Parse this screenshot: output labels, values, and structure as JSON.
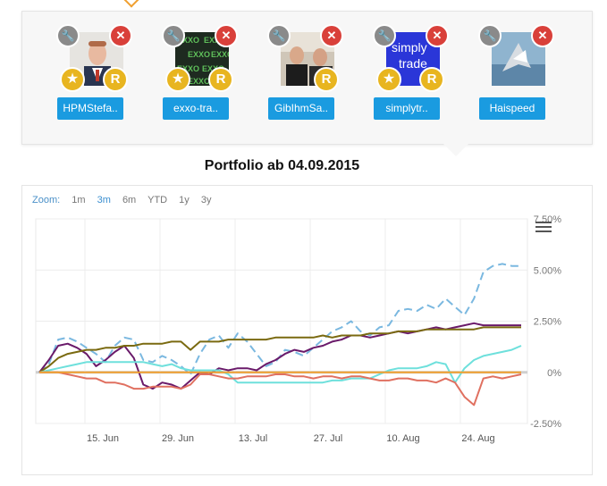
{
  "traders": [
    {
      "name": "HPMStefa..",
      "badges": [
        "star",
        "R"
      ]
    },
    {
      "name": "exxo-tra..",
      "badges": [
        "star",
        "R"
      ]
    },
    {
      "name": "GibIhmSa..",
      "badges": [
        "R"
      ]
    },
    {
      "name": "simplytr..",
      "badges": [
        "star",
        "R"
      ]
    },
    {
      "name": "Haispeed",
      "badges": []
    }
  ],
  "avatar_text": {
    "exxo": "EXXO",
    "simply_line1": "simply",
    "simply_line2": "trade"
  },
  "title": "Portfolio ab 04.09.2015",
  "zoom": {
    "label": "Zoom:",
    "options": [
      "1m",
      "3m",
      "6m",
      "YTD",
      "1y",
      "3y"
    ],
    "active": "3m"
  },
  "chart_data": {
    "type": "line",
    "x_ticks": [
      "15. Jun",
      "29. Jun",
      "13. Jul",
      "27. Jul",
      "10. Aug",
      "24. Aug"
    ],
    "y_ticks": [
      "7.50%",
      "5.00%",
      "2.50%",
      "0%",
      "-2.50%"
    ],
    "ylim": [
      -2.5,
      7.5
    ],
    "series": [
      {
        "color": "#7ab8e0",
        "dashed": true,
        "values": [
          0,
          0.4,
          1.6,
          1.7,
          1.5,
          1.2,
          0.9,
          0.5,
          1.3,
          1.7,
          1.6,
          0.6,
          0.5,
          0.8,
          0.6,
          0.3,
          -0.1,
          0.9,
          1.6,
          1.8,
          1.2,
          1.9,
          1.5,
          0.9,
          0.3,
          0.5,
          1.1,
          1.0,
          0.8,
          1.2,
          1.6,
          2.0,
          2.2,
          2.5,
          2.0,
          1.8,
          2.2,
          2.3,
          3.0,
          3.1,
          3.0,
          3.3,
          3.1,
          3.6,
          3.2,
          2.8,
          3.6,
          4.9,
          5.2,
          5.3,
          5.2,
          5.2
        ]
      },
      {
        "color": "#6a1a6a",
        "dashed": false,
        "values": [
          0,
          0.6,
          1.3,
          1.4,
          1.2,
          0.9,
          0.3,
          0.6,
          1.0,
          1.3,
          0.7,
          -0.6,
          -0.8,
          -0.5,
          -0.6,
          -0.8,
          -0.4,
          0.0,
          -0.1,
          0.2,
          0.1,
          0.2,
          0.2,
          0.1,
          0.4,
          0.6,
          0.9,
          1.1,
          1.0,
          1.2,
          1.3,
          1.5,
          1.6,
          1.8,
          1.8,
          1.7,
          1.8,
          1.9,
          2.0,
          1.9,
          2.0,
          2.1,
          2.2,
          2.1,
          2.2,
          2.3,
          2.4,
          2.3,
          2.3,
          2.3,
          2.3,
          2.3
        ]
      },
      {
        "color": "#7a6a10",
        "dashed": false,
        "values": [
          0,
          0.3,
          0.7,
          0.9,
          1.0,
          1.1,
          1.1,
          1.2,
          1.2,
          1.3,
          1.3,
          1.4,
          1.4,
          1.4,
          1.5,
          1.5,
          1.1,
          1.5,
          1.5,
          1.5,
          1.6,
          1.6,
          1.6,
          1.6,
          1.6,
          1.7,
          1.7,
          1.7,
          1.7,
          1.7,
          1.8,
          1.7,
          1.8,
          1.8,
          1.8,
          1.9,
          1.9,
          1.9,
          2.0,
          2.0,
          2.0,
          2.1,
          2.1,
          2.1,
          2.1,
          2.1,
          2.1,
          2.2,
          2.2,
          2.2,
          2.2,
          2.2
        ]
      },
      {
        "color": "#6ee0dc",
        "dashed": false,
        "values": [
          0,
          0.1,
          0.2,
          0.3,
          0.4,
          0.5,
          0.5,
          0.5,
          0.5,
          0.5,
          0.5,
          0.5,
          0.4,
          0.3,
          0.4,
          0.2,
          0.1,
          0.1,
          0.1,
          0.1,
          -0.1,
          -0.5,
          -0.5,
          -0.5,
          -0.5,
          -0.5,
          -0.5,
          -0.5,
          -0.5,
          -0.5,
          -0.5,
          -0.4,
          -0.4,
          -0.3,
          -0.3,
          -0.3,
          -0.1,
          0.1,
          0.2,
          0.2,
          0.2,
          0.3,
          0.5,
          0.4,
          -0.5,
          0.2,
          0.6,
          0.8,
          0.9,
          1.0,
          1.1,
          1.3
        ]
      },
      {
        "color": "#e07060",
        "dashed": false,
        "values": [
          0,
          0.0,
          0.0,
          -0.1,
          -0.2,
          -0.3,
          -0.3,
          -0.5,
          -0.5,
          -0.6,
          -0.8,
          -0.8,
          -0.7,
          -0.7,
          -0.7,
          -0.8,
          -0.6,
          -0.1,
          -0.1,
          -0.2,
          -0.3,
          -0.3,
          -0.2,
          -0.2,
          -0.2,
          -0.1,
          -0.1,
          -0.2,
          -0.2,
          -0.3,
          -0.2,
          -0.2,
          -0.3,
          -0.2,
          -0.2,
          -0.3,
          -0.4,
          -0.4,
          -0.3,
          -0.3,
          -0.4,
          -0.4,
          -0.5,
          -0.3,
          -0.5,
          -1.2,
          -1.6,
          -0.3,
          -0.2,
          -0.3,
          -0.2,
          -0.1
        ]
      },
      {
        "color": "#f0a030",
        "dashed": false,
        "values": [
          0,
          0,
          0,
          0,
          0,
          0,
          0,
          0,
          0,
          0,
          0,
          0,
          0,
          0,
          0,
          0,
          0,
          0,
          0,
          0,
          0,
          0,
          0,
          0,
          0,
          0,
          0,
          0,
          0,
          0,
          0,
          0,
          0,
          0,
          0,
          0,
          0,
          0,
          0,
          0,
          0,
          0,
          0,
          0,
          0,
          0,
          0,
          0,
          0,
          0,
          0,
          0
        ]
      }
    ]
  }
}
